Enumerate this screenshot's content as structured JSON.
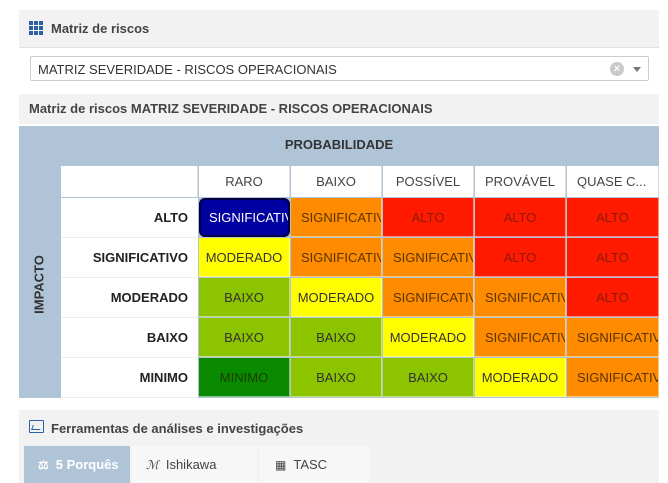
{
  "panel": {
    "title": "Matriz de riscos",
    "select_value": "MATRIZ SEVERIDADE - RISCOS OPERACIONAIS",
    "subheader": "Matriz de riscos MATRIZ SEVERIDADE - RISCOS OPERACIONAIS"
  },
  "matrix": {
    "probability_label": "PROBABILIDADE",
    "impact_label": "IMPACTO",
    "columns": [
      "RARO",
      "BAIXO",
      "POSSÍVEL",
      "PROVÁVEL",
      "QUASE C..."
    ],
    "rows": [
      "ALTO",
      "SIGNIFICATIVO",
      "MODERADO",
      "BAIXO",
      "MINIMO"
    ],
    "cells": [
      [
        "SIGNIFICATIVO",
        "SIGNIFICATIVO",
        "ALTO",
        "ALTO",
        "ALTO"
      ],
      [
        "MODERADO",
        "SIGNIFICATIVO",
        "SIGNIFICATIVO",
        "ALTO",
        "ALTO"
      ],
      [
        "BAIXO",
        "MODERADO",
        "SIGNIFICATIVO",
        "SIGNIFICATIVO",
        "ALTO"
      ],
      [
        "BAIXO",
        "BAIXO",
        "MODERADO",
        "SIGNIFICATIVO",
        "SIGNIFICATIVO"
      ],
      [
        "MINIMO",
        "BAIXO",
        "BAIXO",
        "MODERADO",
        "SIGNIFICATIVO"
      ]
    ],
    "level_colors": {
      "ALTO": "#ff1a00",
      "SIGNIFICATIVO": "#ff8c00",
      "MODERADO": "#ffff00",
      "BAIXO": "#8cc400",
      "MINIMO": "#0a8a00"
    },
    "selected_color": "#0000a0"
  },
  "tools": {
    "title": "Ferramentas de análises e investigações",
    "tabs": [
      {
        "label": "5 Porquês",
        "icon": "balance-icon",
        "active": true
      },
      {
        "label": "Ishikawa",
        "icon": "fishbone-icon",
        "active": false
      },
      {
        "label": "TASC",
        "icon": "table-icon",
        "active": false
      }
    ]
  }
}
